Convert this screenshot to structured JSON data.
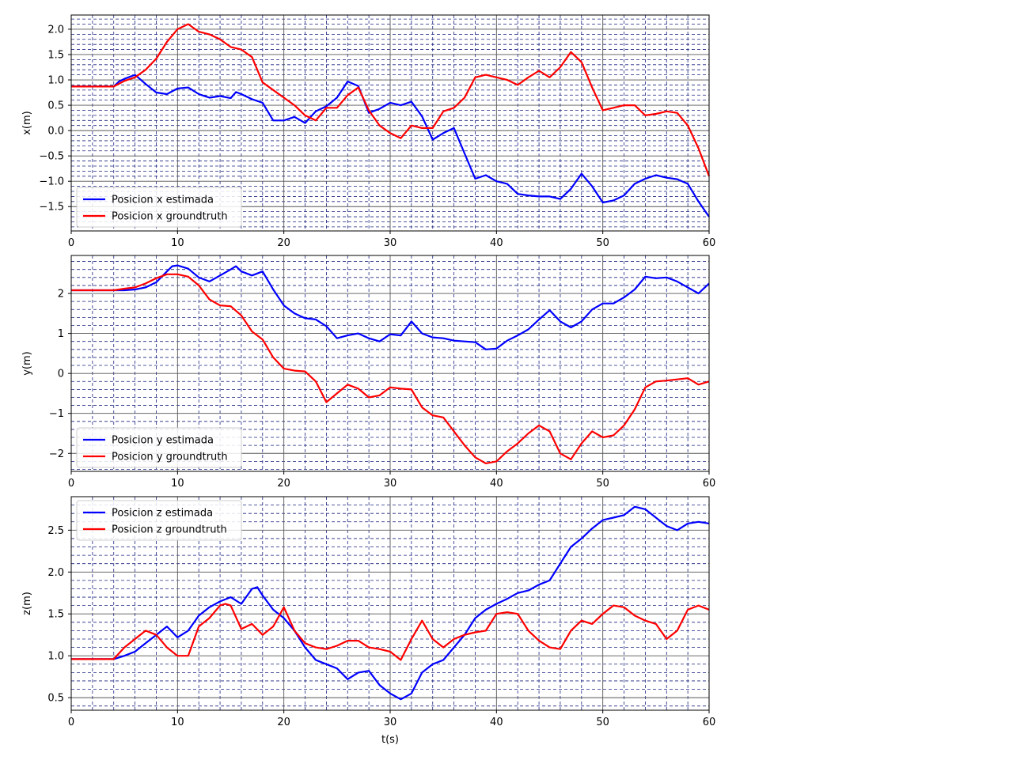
{
  "chart_data": [
    {
      "type": "line",
      "title": "",
      "xlabel": "",
      "ylabel": "x(m)",
      "xlim": [
        0,
        60
      ],
      "ylim": [
        -1.98,
        2.28
      ],
      "grid": {
        "major": true,
        "minor": true,
        "minor_style": "dashed",
        "minor_color": "#1a237e"
      },
      "legend": "lower-left",
      "xticks": [
        0,
        10,
        20,
        30,
        40,
        50,
        60
      ],
      "yticks": [
        -1.5,
        -1.0,
        -0.5,
        0.0,
        0.5,
        1.0,
        1.5,
        2.0
      ],
      "ytick_labels": [
        "−1.5",
        "−1.0",
        "−0.5",
        "0.0",
        "0.5",
        "1.0",
        "1.5",
        "2.0"
      ],
      "xtick_labels": [
        "0",
        "10",
        "20",
        "30",
        "40",
        "50",
        "60"
      ],
      "series": [
        {
          "name": "Posicion x estimada",
          "color": "#0000ff",
          "x": [
            0,
            4,
            4.5,
            5,
            6,
            7,
            8,
            9,
            10,
            11,
            12,
            13,
            14,
            15,
            15.5,
            16,
            17,
            18,
            19,
            20,
            21,
            22,
            23,
            24,
            25,
            26,
            27,
            28,
            29,
            30,
            31,
            32,
            33,
            34,
            35,
            36,
            37,
            38,
            39,
            40,
            41,
            42,
            43,
            44,
            45,
            46,
            47,
            48,
            49,
            50,
            51,
            52,
            53,
            54,
            55,
            56,
            57,
            58,
            59,
            60
          ],
          "y": [
            0.87,
            0.87,
            0.97,
            1.02,
            1.1,
            0.92,
            0.75,
            0.72,
            0.83,
            0.85,
            0.72,
            0.65,
            0.68,
            0.64,
            0.76,
            0.72,
            0.62,
            0.55,
            0.2,
            0.2,
            0.27,
            0.15,
            0.38,
            0.48,
            0.65,
            0.97,
            0.88,
            0.35,
            0.43,
            0.55,
            0.5,
            0.57,
            0.28,
            -0.18,
            -0.05,
            0.05,
            -0.45,
            -0.95,
            -0.88,
            -1.0,
            -1.05,
            -1.25,
            -1.28,
            -1.3,
            -1.3,
            -1.35,
            -1.15,
            -0.85,
            -1.1,
            -1.42,
            -1.38,
            -1.28,
            -1.05,
            -0.95,
            -0.88,
            -0.93,
            -0.96,
            -1.05,
            -1.4,
            -1.7
          ]
        },
        {
          "name": "Posicion x groundtruth",
          "color": "#ff0000",
          "x": [
            0,
            4,
            5,
            6,
            7,
            8,
            9,
            10,
            11,
            12,
            13,
            14,
            15,
            16,
            17,
            18,
            19,
            20,
            21,
            22,
            23,
            24,
            25,
            26,
            27,
            28,
            29,
            30,
            31,
            32,
            33,
            34,
            35,
            36,
            37,
            38,
            39,
            40,
            41,
            42,
            43,
            44,
            45,
            46,
            47,
            48,
            49,
            50,
            51,
            52,
            53,
            54,
            55,
            56,
            57,
            58,
            59,
            60
          ],
          "y": [
            0.87,
            0.87,
            0.98,
            1.05,
            1.2,
            1.42,
            1.75,
            2.0,
            2.1,
            1.95,
            1.9,
            1.8,
            1.65,
            1.6,
            1.45,
            0.95,
            0.8,
            0.65,
            0.5,
            0.3,
            0.2,
            0.45,
            0.45,
            0.7,
            0.85,
            0.4,
            0.1,
            -0.05,
            -0.15,
            0.1,
            0.05,
            0.05,
            0.38,
            0.45,
            0.65,
            1.05,
            1.1,
            1.05,
            1.0,
            0.9,
            1.05,
            1.18,
            1.05,
            1.25,
            1.55,
            1.35,
            0.85,
            0.4,
            0.45,
            0.5,
            0.5,
            0.3,
            0.33,
            0.38,
            0.35,
            0.1,
            -0.35,
            -0.9
          ]
        }
      ]
    },
    {
      "type": "line",
      "title": "",
      "xlabel": "",
      "ylabel": "y(m)",
      "xlim": [
        0,
        60
      ],
      "ylim": [
        -2.45,
        2.95
      ],
      "grid": {
        "major": true,
        "minor": true,
        "minor_style": "dashed",
        "minor_color": "#1a237e"
      },
      "legend": "lower-left",
      "xticks": [
        0,
        10,
        20,
        30,
        40,
        50,
        60
      ],
      "yticks": [
        -2,
        -1,
        0,
        1,
        2
      ],
      "ytick_labels": [
        "−2",
        "−1",
        "0",
        "1",
        "2"
      ],
      "xtick_labels": [
        "0",
        "10",
        "20",
        "30",
        "40",
        "50",
        "60"
      ],
      "series": [
        {
          "name": "Posicion y estimada",
          "color": "#0000ff",
          "x": [
            0,
            4,
            5,
            6,
            7,
            8,
            9,
            9.5,
            10,
            11,
            12,
            13,
            14,
            15,
            15.5,
            16,
            17,
            18,
            19,
            20,
            21,
            22,
            23,
            24,
            25,
            26,
            27,
            28,
            29,
            30,
            31,
            32,
            33,
            34,
            35,
            36,
            37,
            38,
            39,
            40,
            41,
            42,
            43,
            44,
            45,
            46,
            47,
            48,
            49,
            50,
            51,
            52,
            53,
            54,
            55,
            56,
            57,
            58,
            59,
            60
          ],
          "y": [
            2.08,
            2.08,
            2.08,
            2.1,
            2.15,
            2.28,
            2.55,
            2.68,
            2.7,
            2.62,
            2.4,
            2.3,
            2.45,
            2.6,
            2.68,
            2.55,
            2.45,
            2.55,
            2.1,
            1.7,
            1.5,
            1.38,
            1.35,
            1.18,
            0.88,
            0.95,
            1.0,
            0.88,
            0.8,
            0.98,
            0.95,
            1.3,
            1.0,
            0.9,
            0.88,
            0.82,
            0.8,
            0.78,
            0.6,
            0.62,
            0.82,
            0.95,
            1.1,
            1.35,
            1.58,
            1.3,
            1.15,
            1.3,
            1.6,
            1.75,
            1.75,
            1.9,
            2.1,
            2.42,
            2.38,
            2.4,
            2.3,
            2.15,
            2.0,
            2.25
          ]
        },
        {
          "name": "Posicion y groundtruth",
          "color": "#ff0000",
          "x": [
            0,
            4,
            5,
            6,
            7,
            8,
            9,
            10,
            11,
            12,
            13,
            14,
            15,
            16,
            17,
            18,
            19,
            20,
            21,
            22,
            23,
            24,
            25,
            26,
            27,
            28,
            29,
            30,
            31,
            32,
            33,
            34,
            35,
            36,
            37,
            38,
            39,
            40,
            41,
            42,
            43,
            44,
            45,
            46,
            47,
            48,
            49,
            50,
            51,
            52,
            53,
            54,
            55,
            56,
            57,
            58,
            59,
            60
          ],
          "y": [
            2.08,
            2.08,
            2.12,
            2.15,
            2.25,
            2.38,
            2.48,
            2.48,
            2.42,
            2.2,
            1.85,
            1.7,
            1.68,
            1.45,
            1.05,
            0.85,
            0.4,
            0.12,
            0.07,
            0.05,
            -0.2,
            -0.72,
            -0.5,
            -0.28,
            -0.38,
            -0.6,
            -0.55,
            -0.35,
            -0.38,
            -0.4,
            -0.85,
            -1.05,
            -1.1,
            -1.45,
            -1.8,
            -2.1,
            -2.25,
            -2.2,
            -1.95,
            -1.75,
            -1.5,
            -1.3,
            -1.45,
            -2.0,
            -2.15,
            -1.75,
            -1.45,
            -1.6,
            -1.55,
            -1.3,
            -0.9,
            -0.35,
            -0.2,
            -0.18,
            -0.15,
            -0.12,
            -0.28,
            -0.2
          ]
        }
      ]
    },
    {
      "type": "line",
      "title": "",
      "xlabel": "t(s)",
      "ylabel": "z(m)",
      "xlim": [
        0,
        60
      ],
      "ylim": [
        0.35,
        2.9
      ],
      "grid": {
        "major": true,
        "minor": true,
        "minor_style": "dashed",
        "minor_color": "#1a237e"
      },
      "legend": "upper-left",
      "xticks": [
        0,
        10,
        20,
        30,
        40,
        50,
        60
      ],
      "yticks": [
        0.5,
        1.0,
        1.5,
        2.0,
        2.5
      ],
      "ytick_labels": [
        "0.5",
        "1.0",
        "1.5",
        "2.0",
        "2.5"
      ],
      "xtick_labels": [
        "0",
        "10",
        "20",
        "30",
        "40",
        "50",
        "60"
      ],
      "series": [
        {
          "name": "Posicion z estimada",
          "color": "#0000ff",
          "x": [
            0,
            4,
            4.5,
            5,
            6,
            7,
            8,
            9,
            10,
            11,
            12,
            13,
            14,
            15,
            16,
            17,
            17.5,
            18,
            19,
            20,
            21,
            22,
            23,
            24,
            25,
            26,
            27,
            28,
            29,
            30,
            31,
            32,
            33,
            34,
            35,
            36,
            37,
            38,
            39,
            40,
            41,
            42,
            43,
            44,
            45,
            46,
            47,
            48,
            49,
            50,
            51,
            52,
            53,
            54,
            55,
            56,
            57,
            58,
            59,
            60
          ],
          "y": [
            0.96,
            0.96,
            0.98,
            1.0,
            1.05,
            1.15,
            1.25,
            1.35,
            1.22,
            1.3,
            1.48,
            1.58,
            1.65,
            1.7,
            1.62,
            1.8,
            1.82,
            1.72,
            1.55,
            1.45,
            1.3,
            1.1,
            0.95,
            0.9,
            0.85,
            0.72,
            0.8,
            0.82,
            0.65,
            0.55,
            0.48,
            0.55,
            0.8,
            0.9,
            0.95,
            1.1,
            1.25,
            1.45,
            1.55,
            1.62,
            1.68,
            1.75,
            1.78,
            1.85,
            1.9,
            2.1,
            2.3,
            2.4,
            2.52,
            2.62,
            2.65,
            2.68,
            2.78,
            2.75,
            2.65,
            2.55,
            2.5,
            2.58,
            2.6,
            2.58
          ]
        },
        {
          "name": "Posicion z groundtruth",
          "color": "#ff0000",
          "x": [
            0,
            4,
            5,
            6,
            7,
            8,
            9,
            10,
            11,
            12,
            13,
            14,
            14.5,
            15,
            16,
            17,
            18,
            19,
            20,
            21,
            22,
            23,
            24,
            25,
            26,
            27,
            28,
            29,
            30,
            31,
            32,
            33,
            34,
            35,
            36,
            37,
            38,
            39,
            40,
            41,
            42,
            43,
            44,
            45,
            46,
            47,
            48,
            49,
            50,
            51,
            52,
            53,
            54,
            55,
            56,
            57,
            58,
            59,
            60
          ],
          "y": [
            0.96,
            0.96,
            1.1,
            1.2,
            1.3,
            1.25,
            1.1,
            1.0,
            1.0,
            1.35,
            1.45,
            1.6,
            1.62,
            1.6,
            1.32,
            1.38,
            1.25,
            1.35,
            1.58,
            1.3,
            1.15,
            1.1,
            1.08,
            1.12,
            1.18,
            1.18,
            1.1,
            1.08,
            1.05,
            0.95,
            1.2,
            1.42,
            1.2,
            1.1,
            1.2,
            1.25,
            1.28,
            1.3,
            1.5,
            1.52,
            1.5,
            1.3,
            1.18,
            1.1,
            1.08,
            1.3,
            1.42,
            1.38,
            1.5,
            1.6,
            1.58,
            1.48,
            1.42,
            1.38,
            1.2,
            1.3,
            1.55,
            1.6,
            1.55
          ]
        }
      ]
    }
  ]
}
